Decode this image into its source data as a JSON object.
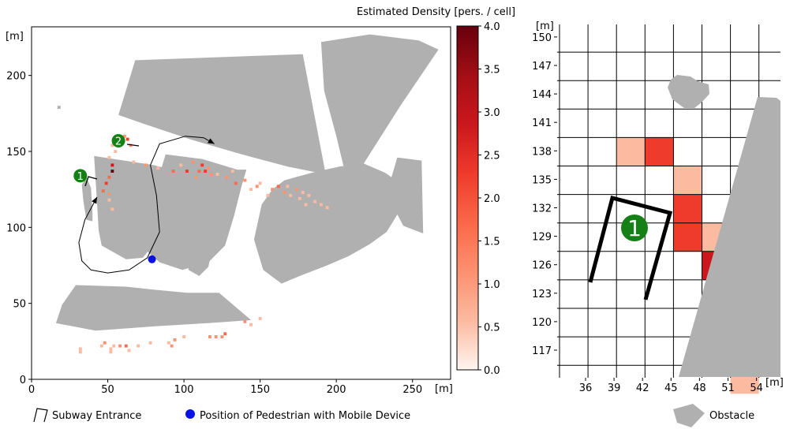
{
  "chart_data": [
    {
      "type": "heatmap",
      "title": "",
      "xlabel": "[m]",
      "ylabel": "[m]",
      "xlim": [
        0,
        275
      ],
      "ylim": [
        0,
        232
      ],
      "x_ticks": [
        0,
        50,
        100,
        150,
        200,
        250
      ],
      "y_ticks": [
        0,
        50,
        100,
        150,
        200
      ],
      "colorbar": {
        "label": "Estimated Density [pers. / cell]",
        "min": 0.0,
        "max": 4.0,
        "ticks": [
          "0.0",
          "0.5",
          "1.0",
          "1.5",
          "2.0",
          "2.5",
          "3.0",
          "3.5",
          "4.0"
        ],
        "colors": [
          "#fff5f0",
          "#fcbba1",
          "#fc9272",
          "#fb6a4a",
          "#ef3b2c",
          "#cb181d",
          "#a50f15",
          "#67000d"
        ]
      },
      "obstacle_color": "#b0b0b0",
      "obstacles": [
        [
          [
            68,
            210
          ],
          [
            178,
            214
          ],
          [
            193,
            135
          ],
          [
            168,
            140
          ],
          [
            138,
            148
          ],
          [
            104,
            158
          ],
          [
            74,
            168
          ],
          [
            57,
            174
          ]
        ],
        [
          [
            190,
            222
          ],
          [
            222,
            227
          ],
          [
            254,
            223
          ],
          [
            267,
            217
          ],
          [
            242,
            180
          ],
          [
            211,
            131
          ],
          [
            206,
            135
          ],
          [
            200,
            160
          ],
          [
            192,
            190
          ]
        ],
        [
          [
            240,
            146
          ],
          [
            256,
            144
          ],
          [
            257,
            96
          ],
          [
            244,
            101
          ],
          [
            233,
            122
          ]
        ],
        [
          [
            17,
            180
          ],
          [
            17,
            178
          ],
          [
            19,
            178
          ],
          [
            19,
            180
          ]
        ],
        [
          [
            88,
            148
          ],
          [
            112,
            145
          ],
          [
            125,
            141
          ],
          [
            135,
            138
          ],
          [
            141,
            138
          ],
          [
            138,
            128
          ],
          [
            133,
            108
          ],
          [
            127,
            88
          ],
          [
            116,
            77
          ],
          [
            99,
            72
          ],
          [
            84,
            77
          ],
          [
            75,
            85
          ],
          [
            77,
            102
          ],
          [
            80,
            122
          ]
        ],
        [
          [
            218,
            142
          ],
          [
            232,
            136
          ],
          [
            250,
            123
          ],
          [
            241,
            110
          ],
          [
            233,
            97
          ],
          [
            222,
            89
          ],
          [
            208,
            81
          ],
          [
            194,
            75
          ],
          [
            176,
            68
          ],
          [
            164,
            63
          ],
          [
            152,
            72
          ],
          [
            146,
            92
          ],
          [
            151,
            115
          ],
          [
            158,
            125
          ],
          [
            166,
            131
          ],
          [
            184,
            136
          ],
          [
            202,
            140
          ]
        ],
        [
          [
            122,
            138
          ],
          [
            109,
            140
          ],
          [
            93,
            142
          ],
          [
            90,
            140
          ],
          [
            92,
            130
          ],
          [
            96,
            116
          ],
          [
            101,
            102
          ],
          [
            104,
            88
          ],
          [
            103,
            80
          ],
          [
            103,
            72
          ],
          [
            110,
            68
          ],
          [
            116,
            74
          ],
          [
            120,
            92
          ],
          [
            121,
            110
          ],
          [
            121,
            128
          ]
        ],
        [
          [
            41,
            147
          ],
          [
            80,
            141
          ],
          [
            95,
            137
          ],
          [
            95,
            126
          ],
          [
            91,
            112
          ],
          [
            86,
            99
          ],
          [
            80,
            89
          ],
          [
            73,
            80
          ],
          [
            62,
            79
          ],
          [
            46,
            88
          ],
          [
            44,
            98
          ],
          [
            43,
            116
          ]
        ],
        [
          [
            36,
            133
          ],
          [
            39,
            126
          ],
          [
            40,
            109
          ],
          [
            40,
            104
          ],
          [
            36,
            105
          ],
          [
            34,
            117
          ],
          [
            33,
            128
          ]
        ],
        [
          [
            16,
            37
          ],
          [
            20,
            49
          ],
          [
            29,
            62
          ],
          [
            62,
            61
          ],
          [
            80,
            59
          ],
          [
            102,
            57
          ],
          [
            123,
            57
          ],
          [
            144,
            39
          ],
          [
            116,
            37
          ],
          [
            82,
            35
          ],
          [
            42,
            32
          ]
        ]
      ],
      "cells": [
        {
          "x": 51,
          "y": 146,
          "v": 0.5
        },
        {
          "x": 53,
          "y": 154,
          "v": 0.5
        },
        {
          "x": 57,
          "y": 158,
          "v": 1.5
        },
        {
          "x": 61,
          "y": 160,
          "v": 1.0
        },
        {
          "x": 63,
          "y": 158,
          "v": 2.0
        },
        {
          "x": 65,
          "y": 154,
          "v": 1.0
        },
        {
          "x": 55,
          "y": 150,
          "v": 0.5
        },
        {
          "x": 53,
          "y": 141,
          "v": 3.0
        },
        {
          "x": 53,
          "y": 137,
          "v": 4.0
        },
        {
          "x": 51,
          "y": 133,
          "v": 1.5
        },
        {
          "x": 49,
          "y": 129,
          "v": 2.0
        },
        {
          "x": 47,
          "y": 124,
          "v": 1.5
        },
        {
          "x": 51,
          "y": 122,
          "v": 1.0
        },
        {
          "x": 67,
          "y": 143,
          "v": 0.5
        },
        {
          "x": 75,
          "y": 141,
          "v": 1.0
        },
        {
          "x": 83,
          "y": 139,
          "v": 0.5
        },
        {
          "x": 93,
          "y": 137,
          "v": 1.5
        },
        {
          "x": 98,
          "y": 141,
          "v": 0.5
        },
        {
          "x": 102,
          "y": 137,
          "v": 2.0
        },
        {
          "x": 106,
          "y": 143,
          "v": 1.0
        },
        {
          "x": 110,
          "y": 137,
          "v": 1.5
        },
        {
          "x": 112,
          "y": 141,
          "v": 2.0
        },
        {
          "x": 114,
          "y": 137,
          "v": 2.5
        },
        {
          "x": 116,
          "y": 139,
          "v": 1.0
        },
        {
          "x": 108,
          "y": 133,
          "v": 1.0
        },
        {
          "x": 118,
          "y": 135,
          "v": 1.0
        },
        {
          "x": 122,
          "y": 135,
          "v": 0.5
        },
        {
          "x": 128,
          "y": 133,
          "v": 1.0
        },
        {
          "x": 132,
          "y": 137,
          "v": 0.5
        },
        {
          "x": 134,
          "y": 129,
          "v": 1.5
        },
        {
          "x": 140,
          "y": 131,
          "v": 1.0
        },
        {
          "x": 144,
          "y": 125,
          "v": 0.5
        },
        {
          "x": 148,
          "y": 127,
          "v": 1.0
        },
        {
          "x": 150,
          "y": 129,
          "v": 0.5
        },
        {
          "x": 158,
          "y": 125,
          "v": 1.0
        },
        {
          "x": 162,
          "y": 127,
          "v": 1.5
        },
        {
          "x": 166,
          "y": 123,
          "v": 1.0
        },
        {
          "x": 168,
          "y": 127,
          "v": 0.5
        },
        {
          "x": 170,
          "y": 121,
          "v": 0.5
        },
        {
          "x": 174,
          "y": 125,
          "v": 1.0
        },
        {
          "x": 176,
          "y": 119,
          "v": 0.5
        },
        {
          "x": 180,
          "y": 115,
          "v": 0.5
        },
        {
          "x": 190,
          "y": 115,
          "v": 0.5
        },
        {
          "x": 194,
          "y": 113,
          "v": 0.5
        },
        {
          "x": 178,
          "y": 123,
          "v": 0.5
        },
        {
          "x": 182,
          "y": 121,
          "v": 0.5
        },
        {
          "x": 186,
          "y": 117,
          "v": 0.5
        },
        {
          "x": 155,
          "y": 121,
          "v": 0.5
        },
        {
          "x": 53,
          "y": 112,
          "v": 0.5
        },
        {
          "x": 51,
          "y": 118,
          "v": 0.5
        },
        {
          "x": 140,
          "y": 38,
          "v": 1.0
        },
        {
          "x": 144,
          "y": 36,
          "v": 0.5
        },
        {
          "x": 150,
          "y": 40,
          "v": 0.5
        },
        {
          "x": 127,
          "y": 30,
          "v": 1.5
        },
        {
          "x": 117,
          "y": 28,
          "v": 1.0
        },
        {
          "x": 121,
          "y": 28,
          "v": 1.0
        },
        {
          "x": 125,
          "y": 28,
          "v": 1.0
        },
        {
          "x": 100,
          "y": 28,
          "v": 0.5
        },
        {
          "x": 94,
          "y": 26,
          "v": 1.0
        },
        {
          "x": 92,
          "y": 22,
          "v": 1.0
        },
        {
          "x": 90,
          "y": 24,
          "v": 0.5
        },
        {
          "x": 78,
          "y": 24,
          "v": 0.5
        },
        {
          "x": 70,
          "y": 22,
          "v": 0.5
        },
        {
          "x": 62,
          "y": 22,
          "v": 1.5
        },
        {
          "x": 58,
          "y": 22,
          "v": 1.0
        },
        {
          "x": 54,
          "y": 22,
          "v": 0.5
        },
        {
          "x": 48,
          "y": 24,
          "v": 1.0
        },
        {
          "x": 46,
          "y": 22,
          "v": 0.5
        },
        {
          "x": 52,
          "y": 20,
          "v": 0.5
        },
        {
          "x": 64,
          "y": 19,
          "v": 0.5
        },
        {
          "x": 32,
          "y": 20,
          "v": 0.5
        },
        {
          "x": 32,
          "y": 18,
          "v": 0.5
        },
        {
          "x": 52,
          "y": 18,
          "v": 0.5
        }
      ],
      "markers": [
        {
          "label": "1",
          "x": 32,
          "y": 134,
          "color": "#158015"
        },
        {
          "label": "2",
          "x": 57,
          "y": 157,
          "color": "#158015"
        }
      ],
      "pedestrian": {
        "x": 79,
        "y": 79,
        "color": "#0a11e6"
      },
      "path": [
        [
          120,
          155
        ],
        [
          113,
          159
        ],
        [
          101,
          160
        ],
        [
          84,
          155
        ],
        [
          78,
          141
        ],
        [
          82,
          121
        ],
        [
          84,
          97
        ],
        [
          76,
          80
        ],
        [
          64,
          72
        ],
        [
          50,
          70
        ],
        [
          39,
          72
        ],
        [
          33,
          78
        ],
        [
          31,
          90
        ],
        [
          35,
          105
        ],
        [
          43,
          120
        ]
      ]
    },
    {
      "type": "heatmap",
      "title": "",
      "xlabel": "[m]",
      "ylabel": "[m]",
      "x_ticks": [
        36,
        39,
        42,
        45,
        48,
        51,
        54
      ],
      "y_ticks": [
        117,
        120,
        123,
        126,
        129,
        132,
        135,
        138,
        141,
        144,
        147,
        150
      ],
      "grid": true,
      "cell_size": 3,
      "cells": [
        {
          "col": 6,
          "row": 12,
          "v": 0.75
        },
        {
          "col": 6,
          "row": 11,
          "v": 2.0
        },
        {
          "col": 5,
          "row": 10,
          "v": 4.0
        },
        {
          "col": 6,
          "row": 10,
          "v": 2.0
        },
        {
          "col": 5,
          "row": 8,
          "v": 3.0
        },
        {
          "col": 4,
          "row": 7,
          "v": 2.0
        },
        {
          "col": 5,
          "row": 7,
          "v": 0.75
        },
        {
          "col": 4,
          "row": 6,
          "v": 2.0
        },
        {
          "col": 4,
          "row": 5,
          "v": 0.75
        },
        {
          "col": 2,
          "row": 4,
          "v": 0.75
        },
        {
          "col": 3,
          "row": 4,
          "v": 2.0
        }
      ],
      "marker": {
        "label": "1"
      },
      "legend": [
        {
          "type": "icon",
          "label": "Subway Entrance"
        },
        {
          "type": "dot",
          "label": "Position of Pedestrian with Mobile Device",
          "color": "#0a11e6"
        },
        {
          "type": "shape",
          "label": "Obstacle"
        }
      ]
    }
  ]
}
